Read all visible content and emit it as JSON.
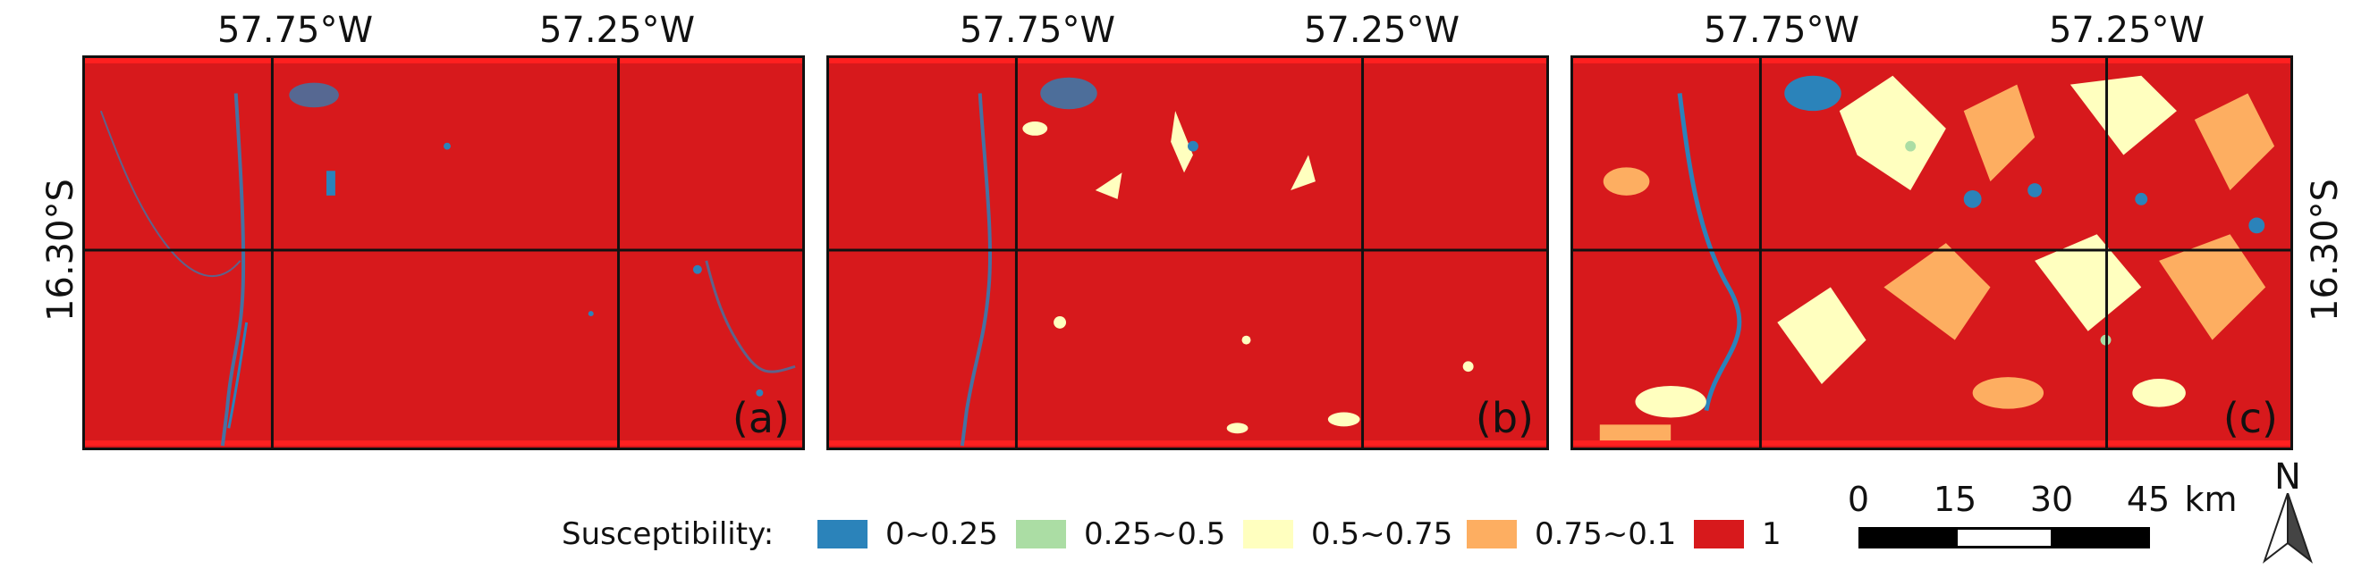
{
  "lon_labels": [
    "57.75°W",
    "57.25°W"
  ],
  "lat_label": "16.30°S",
  "panels": [
    {
      "label": "(a)"
    },
    {
      "label": "(b)"
    },
    {
      "label": "(c)"
    }
  ],
  "legend": {
    "title": "Susceptibility:",
    "items": [
      {
        "label": "0~0.25",
        "color": "#2b83ba"
      },
      {
        "label": "0.25~0.5",
        "color": "#abdda4"
      },
      {
        "label": "0.5~0.75",
        "color": "#ffffbf"
      },
      {
        "label": "0.75~0.1",
        "color": "#fdae61"
      },
      {
        "label": "1",
        "color": "#d7191c"
      }
    ]
  },
  "scalebar": {
    "ticks": [
      "0",
      "15",
      "30",
      "45"
    ],
    "unit": "km"
  },
  "north_arrow": {
    "label": "N",
    "icon": "north-arrow-icon"
  }
}
